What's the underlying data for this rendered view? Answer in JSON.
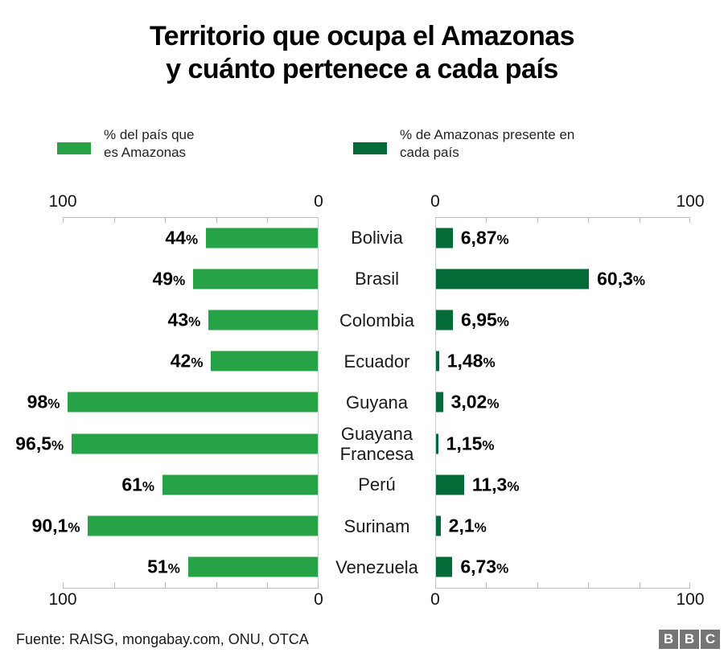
{
  "title": {
    "line1": "Territorio que ocupa el Amazonas",
    "line2": "y cuánto pertenece a cada país"
  },
  "legend": {
    "left_label": "% del país que es Amazonas",
    "right_label": "% de Amazonas presente en cada país"
  },
  "colors": {
    "light_green": "#27A347",
    "dark_green": "#046A38",
    "axis_gray": "#b9bcc2",
    "baseline_gray": "#c8cacd",
    "logo_gray": "#757575"
  },
  "chart_data": {
    "type": "bar",
    "layout": "mirrored-horizontal",
    "title": "Territorio que ocupa el Amazonas y cuánto pertenece a cada país",
    "categories": [
      "Bolivia",
      "Brasil",
      "Colombia",
      "Ecuador",
      "Guyana",
      "Guayana Francesa",
      "Perú",
      "Surinam",
      "Venezuela"
    ],
    "series": [
      {
        "name": "% del país que es Amazonas",
        "side": "left",
        "color": "#27A347",
        "values": [
          44,
          49,
          43,
          42,
          98,
          96.5,
          61,
          90.1,
          51
        ],
        "labels": [
          "44%",
          "49%",
          "43%",
          "42%",
          "98%",
          "96,5%",
          "61%",
          "90,1%",
          "51%"
        ]
      },
      {
        "name": "% de Amazonas presente en cada país",
        "side": "right",
        "color": "#046A38",
        "values": [
          6.87,
          60.3,
          6.95,
          1.48,
          3.02,
          1.15,
          11.3,
          2.1,
          6.73
        ],
        "labels": [
          "6,87%",
          "60,3%",
          "6,95%",
          "1,48%",
          "3,02%",
          "1,15%",
          "11,3%",
          "2,1%",
          "6,73%"
        ]
      }
    ],
    "axes": {
      "left": {
        "ticks": [
          "100",
          "0"
        ],
        "range": [
          100,
          0
        ],
        "tick_step": 20
      },
      "right": {
        "ticks": [
          "0",
          "100"
        ],
        "range": [
          0,
          100
        ],
        "tick_step": 20
      },
      "grid": false
    }
  },
  "footer": {
    "source": "Fuente: RAISG, mongabay.com, ONU, OTCA",
    "logo_letters": [
      "B",
      "B",
      "C"
    ]
  }
}
